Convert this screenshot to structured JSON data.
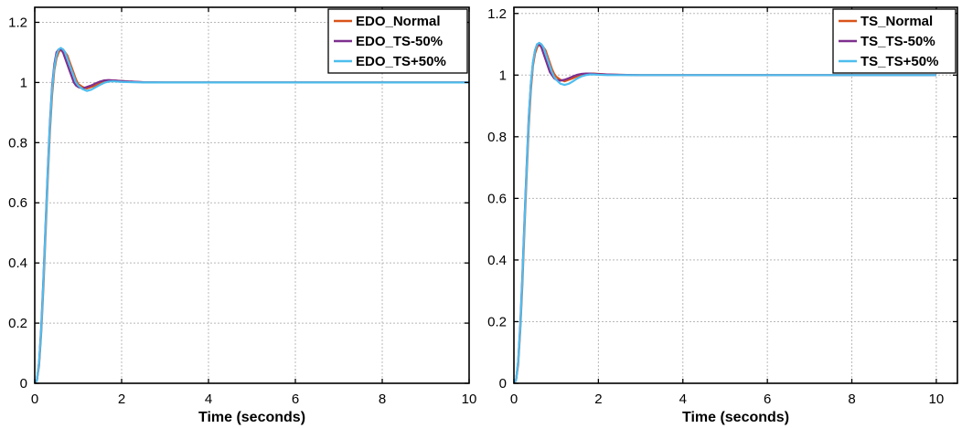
{
  "chart_data": [
    {
      "type": "line",
      "title": "",
      "xlabel": "Time (seconds)",
      "ylabel": "",
      "xlim": [
        0,
        10
      ],
      "ylim": [
        0,
        1.25
      ],
      "xticks": [
        0,
        2,
        4,
        6,
        8,
        10
      ],
      "yticks": [
        0,
        0.2,
        0.4,
        0.6,
        0.8,
        1,
        1.2
      ],
      "grid": true,
      "legend": "top-right",
      "series": [
        {
          "name": "EDO_Normal",
          "color": "#d95319",
          "x": [
            0,
            0.05,
            0.1,
            0.15,
            0.2,
            0.25,
            0.3,
            0.35,
            0.4,
            0.45,
            0.5,
            0.55,
            0.6,
            0.65,
            0.7,
            0.75,
            0.8,
            0.85,
            0.9,
            0.95,
            1.0,
            1.1,
            1.2,
            1.3,
            1.4,
            1.5,
            1.6,
            1.7,
            1.8,
            1.9,
            2.0,
            2.2,
            2.5,
            3.0,
            4.0,
            6.0,
            8.0,
            10.0
          ],
          "y": [
            0,
            0.01,
            0.06,
            0.17,
            0.32,
            0.5,
            0.68,
            0.84,
            0.96,
            1.04,
            1.08,
            1.1,
            1.11,
            1.11,
            1.1,
            1.09,
            1.07,
            1.05,
            1.03,
            1.01,
            0.995,
            0.985,
            0.98,
            0.985,
            0.99,
            0.997,
            1.003,
            1.006,
            1.007,
            1.006,
            1.005,
            1.003,
            1.001,
            1.0,
            1.0,
            1.0,
            1.0,
            1.0
          ]
        },
        {
          "name": "EDO_TS-50%",
          "color": "#7e2f8e",
          "x": [
            0,
            0.05,
            0.1,
            0.15,
            0.2,
            0.25,
            0.3,
            0.35,
            0.4,
            0.45,
            0.5,
            0.55,
            0.6,
            0.65,
            0.7,
            0.75,
            0.8,
            0.85,
            0.9,
            0.95,
            1.0,
            1.1,
            1.2,
            1.3,
            1.4,
            1.5,
            1.6,
            1.7,
            1.8,
            1.9,
            2.0,
            2.2,
            2.5,
            3.0,
            4.0,
            6.0,
            8.0,
            10.0
          ],
          "y": [
            0,
            0.01,
            0.07,
            0.19,
            0.35,
            0.53,
            0.71,
            0.87,
            0.99,
            1.06,
            1.1,
            1.11,
            1.11,
            1.1,
            1.08,
            1.06,
            1.04,
            1.02,
            1.0,
            0.99,
            0.985,
            0.98,
            0.985,
            0.99,
            0.997,
            1.003,
            1.007,
            1.008,
            1.007,
            1.006,
            1.005,
            1.003,
            1.001,
            1.0,
            1.0,
            1.0,
            1.0,
            1.0
          ]
        },
        {
          "name": "EDO_TS+50%",
          "color": "#4dbeee",
          "x": [
            0,
            0.05,
            0.1,
            0.15,
            0.2,
            0.25,
            0.3,
            0.35,
            0.4,
            0.45,
            0.5,
            0.55,
            0.6,
            0.65,
            0.7,
            0.75,
            0.8,
            0.85,
            0.9,
            0.95,
            1.0,
            1.1,
            1.2,
            1.3,
            1.4,
            1.5,
            1.6,
            1.7,
            1.8,
            1.9,
            2.0,
            2.2,
            2.5,
            3.0,
            4.0,
            6.0,
            8.0,
            10.0
          ],
          "y": [
            0,
            0.01,
            0.07,
            0.18,
            0.34,
            0.52,
            0.7,
            0.86,
            0.98,
            1.05,
            1.09,
            1.11,
            1.115,
            1.11,
            1.1,
            1.08,
            1.06,
            1.04,
            1.02,
            1.0,
            0.99,
            0.978,
            0.972,
            0.976,
            0.984,
            0.992,
            0.999,
            1.003,
            1.004,
            1.003,
            1.002,
            1.001,
            1.0,
            1.0,
            1.0,
            1.0,
            1.0,
            1.0
          ]
        }
      ]
    },
    {
      "type": "line",
      "title": "",
      "xlabel": "Time (seconds)",
      "ylabel": "",
      "xlim": [
        0,
        10.5
      ],
      "ylim": [
        0,
        1.22
      ],
      "xticks": [
        0,
        2,
        4,
        6,
        8,
        10
      ],
      "yticks": [
        0,
        0.2,
        0.4,
        0.6,
        0.8,
        1,
        1.2
      ],
      "grid": true,
      "legend": "top-right",
      "series": [
        {
          "name": "TS_Normal",
          "color": "#d95319",
          "x": [
            0,
            0.05,
            0.1,
            0.15,
            0.2,
            0.25,
            0.3,
            0.35,
            0.4,
            0.45,
            0.5,
            0.55,
            0.6,
            0.65,
            0.7,
            0.75,
            0.8,
            0.85,
            0.9,
            0.95,
            1.0,
            1.1,
            1.2,
            1.3,
            1.4,
            1.5,
            1.6,
            1.7,
            1.8,
            1.9,
            2.0,
            2.2,
            2.5,
            3.0,
            4.0,
            6.0,
            8.0,
            10.0
          ],
          "y": [
            0,
            0.01,
            0.06,
            0.17,
            0.32,
            0.5,
            0.67,
            0.83,
            0.95,
            1.03,
            1.07,
            1.09,
            1.1,
            1.1,
            1.09,
            1.08,
            1.06,
            1.04,
            1.02,
            1.005,
            0.995,
            0.985,
            0.98,
            0.985,
            0.99,
            0.996,
            1.001,
            1.004,
            1.005,
            1.005,
            1.004,
            1.002,
            1.001,
            1.0,
            1.0,
            1.0,
            1.0,
            1.0
          ]
        },
        {
          "name": "TS_TS-50%",
          "color": "#7e2f8e",
          "x": [
            0,
            0.05,
            0.1,
            0.15,
            0.2,
            0.25,
            0.3,
            0.35,
            0.4,
            0.45,
            0.5,
            0.55,
            0.6,
            0.65,
            0.7,
            0.75,
            0.8,
            0.85,
            0.9,
            0.95,
            1.0,
            1.1,
            1.2,
            1.3,
            1.4,
            1.5,
            1.6,
            1.7,
            1.8,
            1.9,
            2.0,
            2.2,
            2.5,
            3.0,
            4.0,
            6.0,
            8.0,
            10.0
          ],
          "y": [
            0,
            0.01,
            0.07,
            0.19,
            0.35,
            0.53,
            0.7,
            0.86,
            0.97,
            1.04,
            1.08,
            1.1,
            1.1,
            1.09,
            1.07,
            1.05,
            1.03,
            1.01,
            1.0,
            0.99,
            0.985,
            0.982,
            0.985,
            0.99,
            0.996,
            1.001,
            1.004,
            1.005,
            1.005,
            1.004,
            1.003,
            1.002,
            1.001,
            1.0,
            1.0,
            1.0,
            1.0,
            1.0
          ]
        },
        {
          "name": "TS_TS+50%",
          "color": "#4dbeee",
          "x": [
            0,
            0.05,
            0.1,
            0.15,
            0.2,
            0.25,
            0.3,
            0.35,
            0.4,
            0.45,
            0.5,
            0.55,
            0.6,
            0.65,
            0.7,
            0.75,
            0.8,
            0.85,
            0.9,
            0.95,
            1.0,
            1.1,
            1.2,
            1.3,
            1.4,
            1.5,
            1.6,
            1.7,
            1.8,
            1.9,
            2.0,
            2.2,
            2.5,
            3.0,
            4.0,
            6.0,
            8.0,
            10.0
          ],
          "y": [
            0,
            0.01,
            0.07,
            0.18,
            0.34,
            0.52,
            0.69,
            0.85,
            0.97,
            1.04,
            1.08,
            1.1,
            1.105,
            1.1,
            1.09,
            1.07,
            1.05,
            1.03,
            1.01,
            0.995,
            0.985,
            0.972,
            0.968,
            0.972,
            0.98,
            0.989,
            0.996,
            1.0,
            1.002,
            1.002,
            1.001,
            1.0,
            1.0,
            1.0,
            1.0,
            1.0,
            1.0,
            1.0
          ]
        }
      ]
    }
  ]
}
